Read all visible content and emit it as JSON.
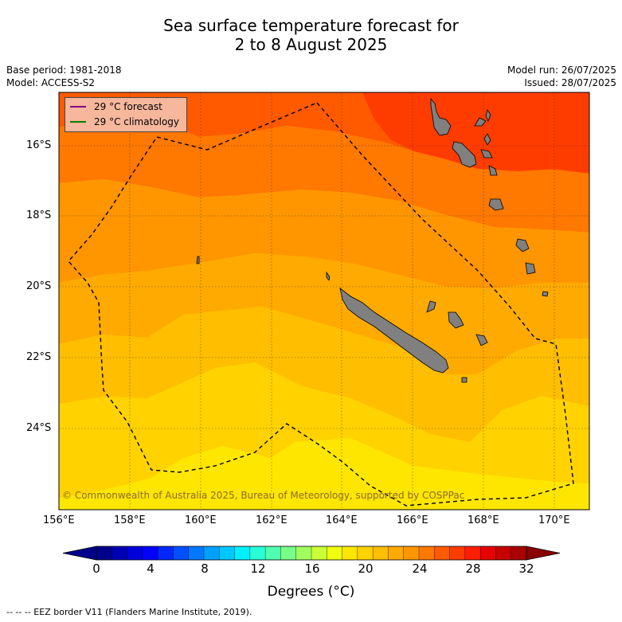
{
  "title": {
    "line1": "Sea surface temperature forecast for",
    "line2": "2 to 8 August 2025"
  },
  "meta": {
    "base_period": "Base period: 1981-2018",
    "model": "Model: ACCESS-S2",
    "model_run": "Model run: 26/07/2025",
    "issued": "Issued: 28/07/2025"
  },
  "legend": {
    "forecast": {
      "label": "29 °C  forecast",
      "color": "#800080"
    },
    "climatology": {
      "label": "29 °C  climatology",
      "color": "#008000"
    }
  },
  "lat_labels": [
    "16°S",
    "18°S",
    "20°S",
    "22°S",
    "24°S"
  ],
  "lon_labels": [
    "156°E",
    "158°E",
    "160°E",
    "162°E",
    "164°E",
    "166°E",
    "168°E",
    "170°E"
  ],
  "copyright": "© Commonwealth of Australia 2025, Bureau of Meteorology, supported by COSPPac",
  "colorbar": {
    "ticks": [
      "0",
      "4",
      "8",
      "12",
      "16",
      "20",
      "24",
      "28",
      "32"
    ],
    "label": "Degrees (°C)",
    "colors": [
      "#00008b",
      "#0000b4",
      "#0000dc",
      "#0000ff",
      "#0028ff",
      "#0050ff",
      "#0078ff",
      "#00a0ff",
      "#00c8ff",
      "#00f0ff",
      "#28ffd7",
      "#50ffaf",
      "#78ff87",
      "#a0ff5f",
      "#c8ff37",
      "#f0ff0f",
      "#ffe600",
      "#ffd200",
      "#ffbe00",
      "#ffaa00",
      "#ff9600",
      "#ff7800",
      "#ff5a00",
      "#ff3c00",
      "#ff1e00",
      "#e60000",
      "#c80000",
      "#aa0000"
    ],
    "under_color": "#00008b",
    "over_color": "#8b0000"
  },
  "footer": "--  --  -- EEZ border V11 (Flanders Marine Institute, 2019).",
  "icons": {
    "legend_line": "line-swatch-icon"
  }
}
